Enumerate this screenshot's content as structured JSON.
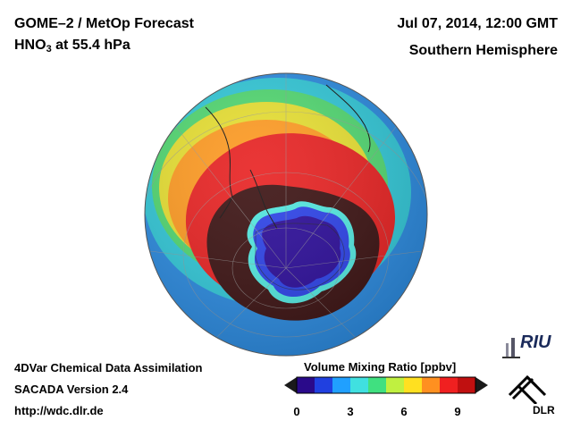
{
  "header": {
    "product": "GOME–2 / MetOp Forecast",
    "species_main": "HNO",
    "species_sub": "3",
    "level": " at 55.4 hPa",
    "datetime": "Jul 07, 2014, 12:00 GMT",
    "hemisphere": "Southern Hemisphere"
  },
  "footer": {
    "method": "4DVar Chemical Data Assimilation",
    "version": "SACADA Version 2.4",
    "url": "http://wdc.dlr.de"
  },
  "colorbar": {
    "title": "Volume Mixing Ratio [ppbv]",
    "ticks": [
      "0",
      "3",
      "6",
      "9"
    ],
    "min": 0,
    "max": 10,
    "colors": [
      "#2a0a8a",
      "#2040e0",
      "#20a0ff",
      "#40e0e0",
      "#40e080",
      "#c0f040",
      "#ffe020",
      "#ff9020",
      "#f02020",
      "#c01010"
    ]
  },
  "logos": {
    "riu": "RIU",
    "dlr": "DLR"
  },
  "map_data": {
    "projection": "orthographic",
    "center": "South Pole",
    "field": "HNO3 volume mixing ratio",
    "ring_values_ppbv": [
      1.5,
      3,
      6,
      8.5,
      11
    ]
  }
}
